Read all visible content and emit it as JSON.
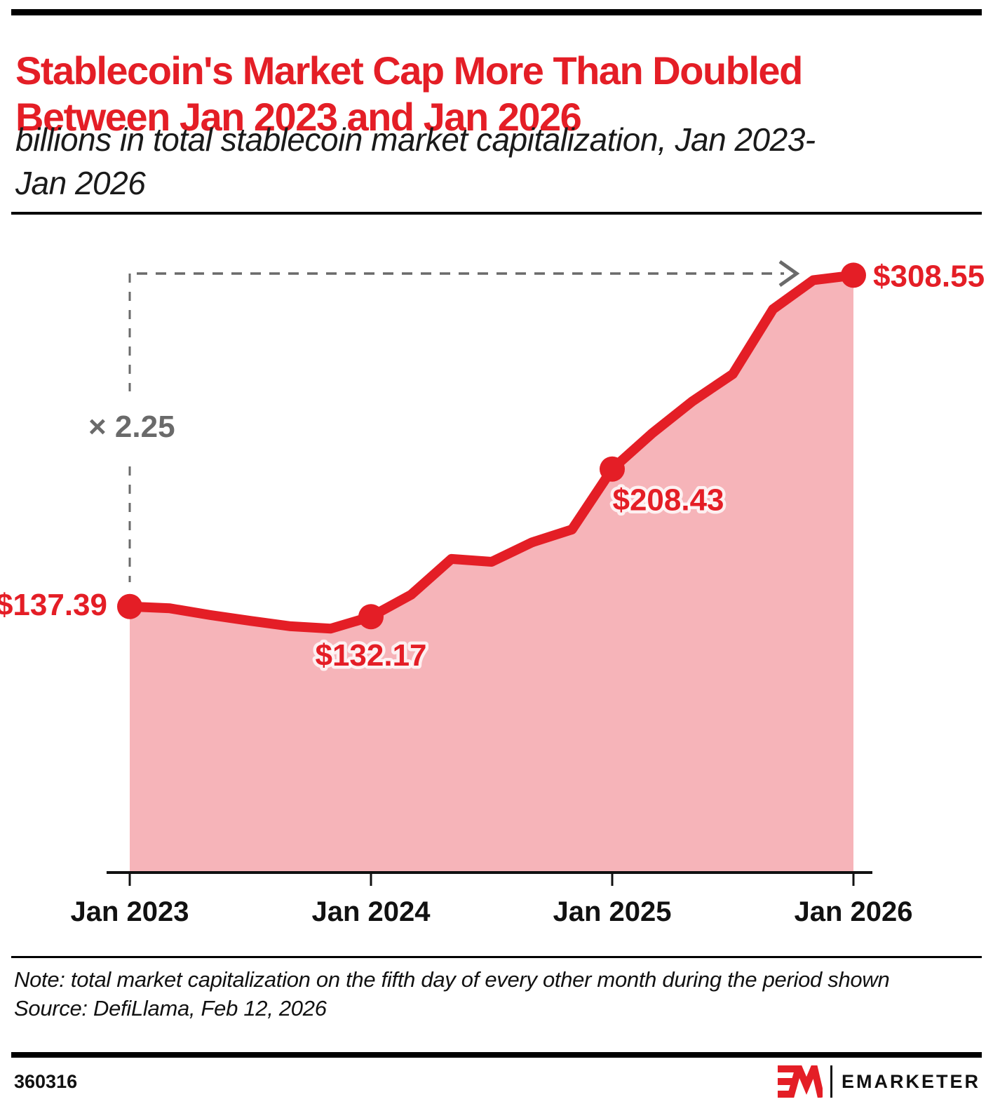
{
  "header": {
    "title": "Stablecoin's Market Cap More Than Doubled Between Jan 2023 and Jan 2026",
    "subtitle": "billions in total stablecoin market capitalization, Jan 2023-Jan 2026"
  },
  "chart_data": {
    "type": "area",
    "title": "billions in total stablecoin market capitalization, Jan 2023-Jan 2026",
    "x": [
      "Jan 2023",
      "Mar 2023",
      "May 2023",
      "Jul 2023",
      "Sep 2023",
      "Nov 2023",
      "Jan 2024",
      "Mar 2024",
      "May 2024",
      "Jul 2024",
      "Sep 2024",
      "Nov 2024",
      "Jan 2025",
      "Mar 2025",
      "May 2025",
      "Jul 2025",
      "Sep 2025",
      "Nov 2025",
      "Jan 2026"
    ],
    "values": [
      137.39,
      136.5,
      133.0,
      130.0,
      127.2,
      126.0,
      132.17,
      143.5,
      162.0,
      160.5,
      170.5,
      177.2,
      208.43,
      227.0,
      243.5,
      257.5,
      291.0,
      306.0,
      308.55
    ],
    "ylim": [
      0,
      331
    ],
    "grid": "off",
    "x_ticks": [
      {
        "index": 0,
        "label": "Jan 2023"
      },
      {
        "index": 6,
        "label": "Jan 2024"
      },
      {
        "index": 12,
        "label": "Jan 2025"
      },
      {
        "index": 18,
        "label": "Jan 2026"
      }
    ],
    "point_labels": [
      {
        "index": 0,
        "text": "$137.39"
      },
      {
        "index": 6,
        "text": "$132.17"
      },
      {
        "index": 12,
        "text": "$208.43"
      },
      {
        "index": 18,
        "text": "$308.55"
      }
    ],
    "annotation_label": "× 2.25",
    "colors": {
      "red": "#e41e26",
      "fill": "#f6b4b9",
      "gray": "#6a6a6a",
      "axis": "#111111"
    }
  },
  "footnote": {
    "note": "Note: total market capitalization on the fifth day of every other month during the period shown",
    "source": "Source: DefiLlama, Feb 12, 2026"
  },
  "footer": {
    "chart_id": "360316",
    "brand": "EMARKETER"
  }
}
